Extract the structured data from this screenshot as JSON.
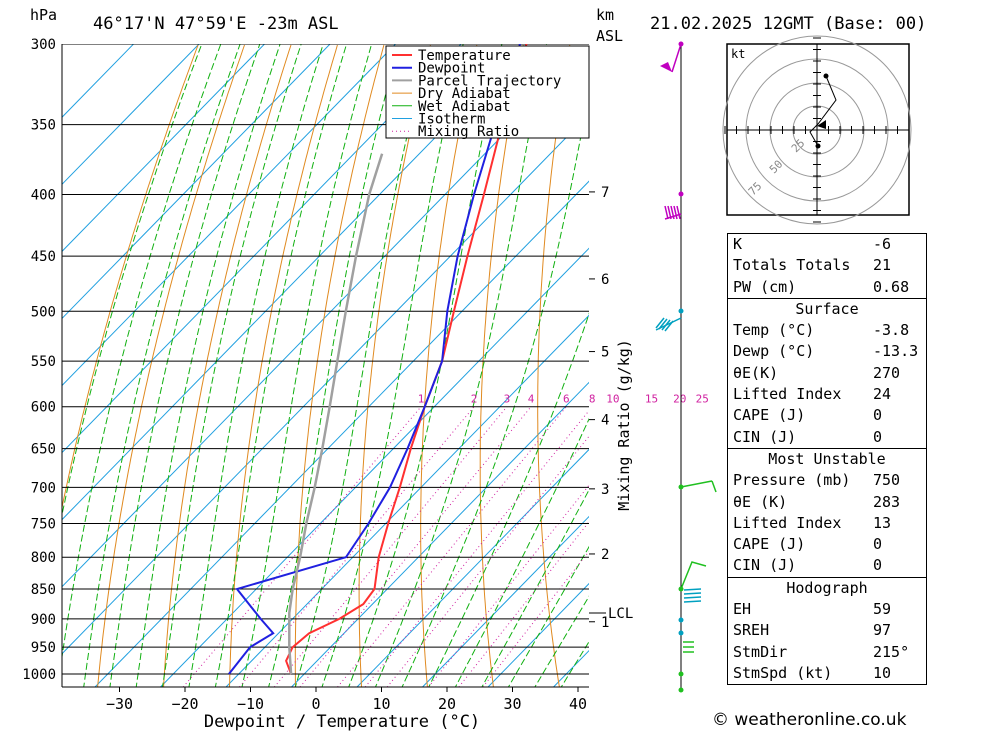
{
  "header": {
    "y_unit": "hPa",
    "location": "46°17'N  47°59'E  -23m  ASL",
    "km_label": "km",
    "asl_label": "ASL",
    "datetime": "21.02.2025  12GMT  (Base: 00)"
  },
  "credit": "© weatheronline.co.uk",
  "hodograph_unit": "kt",
  "hodograph_ring_labels": [
    "25",
    "50",
    "75"
  ],
  "stats": {
    "top": [
      {
        "k": "K",
        "v": "-6"
      },
      {
        "k": "Totals Totals",
        "v": "21"
      },
      {
        "k": "PW (cm)",
        "v": "0.68"
      }
    ],
    "surface": {
      "title": "Surface",
      "rows": [
        {
          "k": "Temp (°C)",
          "v": "-3.8"
        },
        {
          "k": "Dewp (°C)",
          "v": "-13.3"
        },
        {
          "k": "θE(K)",
          "v": "270"
        },
        {
          "k": "Lifted Index",
          "v": "24"
        },
        {
          "k": "CAPE (J)",
          "v": "0"
        },
        {
          "k": "CIN (J)",
          "v": "0"
        }
      ]
    },
    "most_unstable": {
      "title": "Most Unstable",
      "rows": [
        {
          "k": "Pressure (mb)",
          "v": "750"
        },
        {
          "k": "θE (K)",
          "v": "283"
        },
        {
          "k": "Lifted Index",
          "v": "13"
        },
        {
          "k": "CAPE (J)",
          "v": "0"
        },
        {
          "k": "CIN (J)",
          "v": "0"
        }
      ]
    },
    "hodograph": {
      "title": "Hodograph",
      "rows": [
        {
          "k": "EH",
          "v": "59"
        },
        {
          "k": "SREH",
          "v": "97"
        },
        {
          "k": "StmDir",
          "v": "215°"
        },
        {
          "k": "StmSpd (kt)",
          "v": "10"
        }
      ]
    }
  },
  "chart_data": {
    "type": "line",
    "subtype": "skew-T log-P",
    "xlabel": "Dewpoint / Temperature (°C)",
    "ylabel": "hPa",
    "mixing_ratio_axis_label": "Mixing Ratio (g/kg)",
    "pressure_ticks": [
      300,
      350,
      400,
      450,
      500,
      550,
      600,
      650,
      700,
      750,
      800,
      850,
      900,
      950,
      1000
    ],
    "temperature_ticks": [
      -30,
      -20,
      -10,
      0,
      10,
      20,
      30,
      40
    ],
    "xlim": [
      -40,
      40
    ],
    "ylim": [
      1050,
      300
    ],
    "km_ticks": [
      {
        "label": "1",
        "p": 905
      },
      {
        "label": "2",
        "p": 795
      },
      {
        "label": "3",
        "p": 702
      },
      {
        "label": "4",
        "p": 615
      },
      {
        "label": "5",
        "p": 540
      },
      {
        "label": "6",
        "p": 470
      },
      {
        "label": "7",
        "p": 398
      }
    ],
    "lcl": {
      "label": "LCL",
      "p": 890
    },
    "mixing_ratio_labels": [
      "1",
      "2",
      "3",
      "4",
      "6",
      "8",
      "10",
      "15",
      "20",
      "25"
    ],
    "legend": [
      "Temperature",
      "Dewpoint",
      "Parcel Trajectory",
      "Dry Adiabat",
      "Wet Adiabat",
      "Isotherm",
      "Mixing Ratio"
    ],
    "legend_position": "top-right",
    "colors": {
      "temperature": "#ff3030",
      "dewpoint": "#2020e0",
      "parcel": "#a0a0a0",
      "dry_adiabat": "#e08a20",
      "wet_adiabat": "#10b010",
      "isotherm": "#20a0e0",
      "mixing_ratio": "#d020a0",
      "wind_upper": "#c000c0",
      "wind_mid": "#00a0c0",
      "wind_low": "#20c020"
    },
    "series": [
      {
        "name": "Temperature",
        "points": [
          {
            "p": 1000,
            "t": -3.8
          },
          {
            "p": 975,
            "t": -6.5
          },
          {
            "p": 950,
            "t": -7.5
          },
          {
            "p": 925,
            "t": -7.0
          },
          {
            "p": 900,
            "t": -4.5
          },
          {
            "p": 875,
            "t": -3.0
          },
          {
            "p": 850,
            "t": -3.5
          },
          {
            "p": 800,
            "t": -7.5
          },
          {
            "p": 750,
            "t": -11.0
          },
          {
            "p": 700,
            "t": -14.5
          },
          {
            "p": 650,
            "t": -18.5
          },
          {
            "p": 600,
            "t": -22.5
          },
          {
            "p": 550,
            "t": -26.5
          },
          {
            "p": 500,
            "t": -32.0
          },
          {
            "p": 450,
            "t": -38.0
          },
          {
            "p": 400,
            "t": -44.5
          },
          {
            "p": 350,
            "t": -52.0
          },
          {
            "p": 300,
            "t": -60.0
          }
        ]
      },
      {
        "name": "Dewpoint",
        "points": [
          {
            "p": 1000,
            "t": -13.3
          },
          {
            "p": 950,
            "t": -14.0
          },
          {
            "p": 925,
            "t": -12.5
          },
          {
            "p": 900,
            "t": -16.5
          },
          {
            "p": 850,
            "t": -24.5
          },
          {
            "p": 800,
            "t": -12.5
          },
          {
            "p": 750,
            "t": -14.0
          },
          {
            "p": 700,
            "t": -16.0
          },
          {
            "p": 650,
            "t": -19.0
          },
          {
            "p": 600,
            "t": -22.5
          },
          {
            "p": 550,
            "t": -26.5
          },
          {
            "p": 500,
            "t": -33.0
          },
          {
            "p": 450,
            "t": -39.5
          },
          {
            "p": 400,
            "t": -46.0
          },
          {
            "p": 350,
            "t": -53.0
          },
          {
            "p": 300,
            "t": -61.0
          }
        ]
      },
      {
        "name": "Parcel Trajectory",
        "points": [
          {
            "p": 1000,
            "t": -3.8
          },
          {
            "p": 950,
            "t": -8.0
          },
          {
            "p": 890,
            "t": -13.0
          },
          {
            "p": 850,
            "t": -16.0
          },
          {
            "p": 800,
            "t": -19.5
          },
          {
            "p": 750,
            "t": -23.5
          },
          {
            "p": 700,
            "t": -27.5
          },
          {
            "p": 650,
            "t": -32.0
          },
          {
            "p": 600,
            "t": -37.0
          },
          {
            "p": 550,
            "t": -42.5
          },
          {
            "p": 500,
            "t": -48.5
          },
          {
            "p": 450,
            "t": -55.0
          },
          {
            "p": 400,
            "t": -62.0
          },
          {
            "p": 370,
            "t": -66.0
          }
        ]
      }
    ]
  }
}
